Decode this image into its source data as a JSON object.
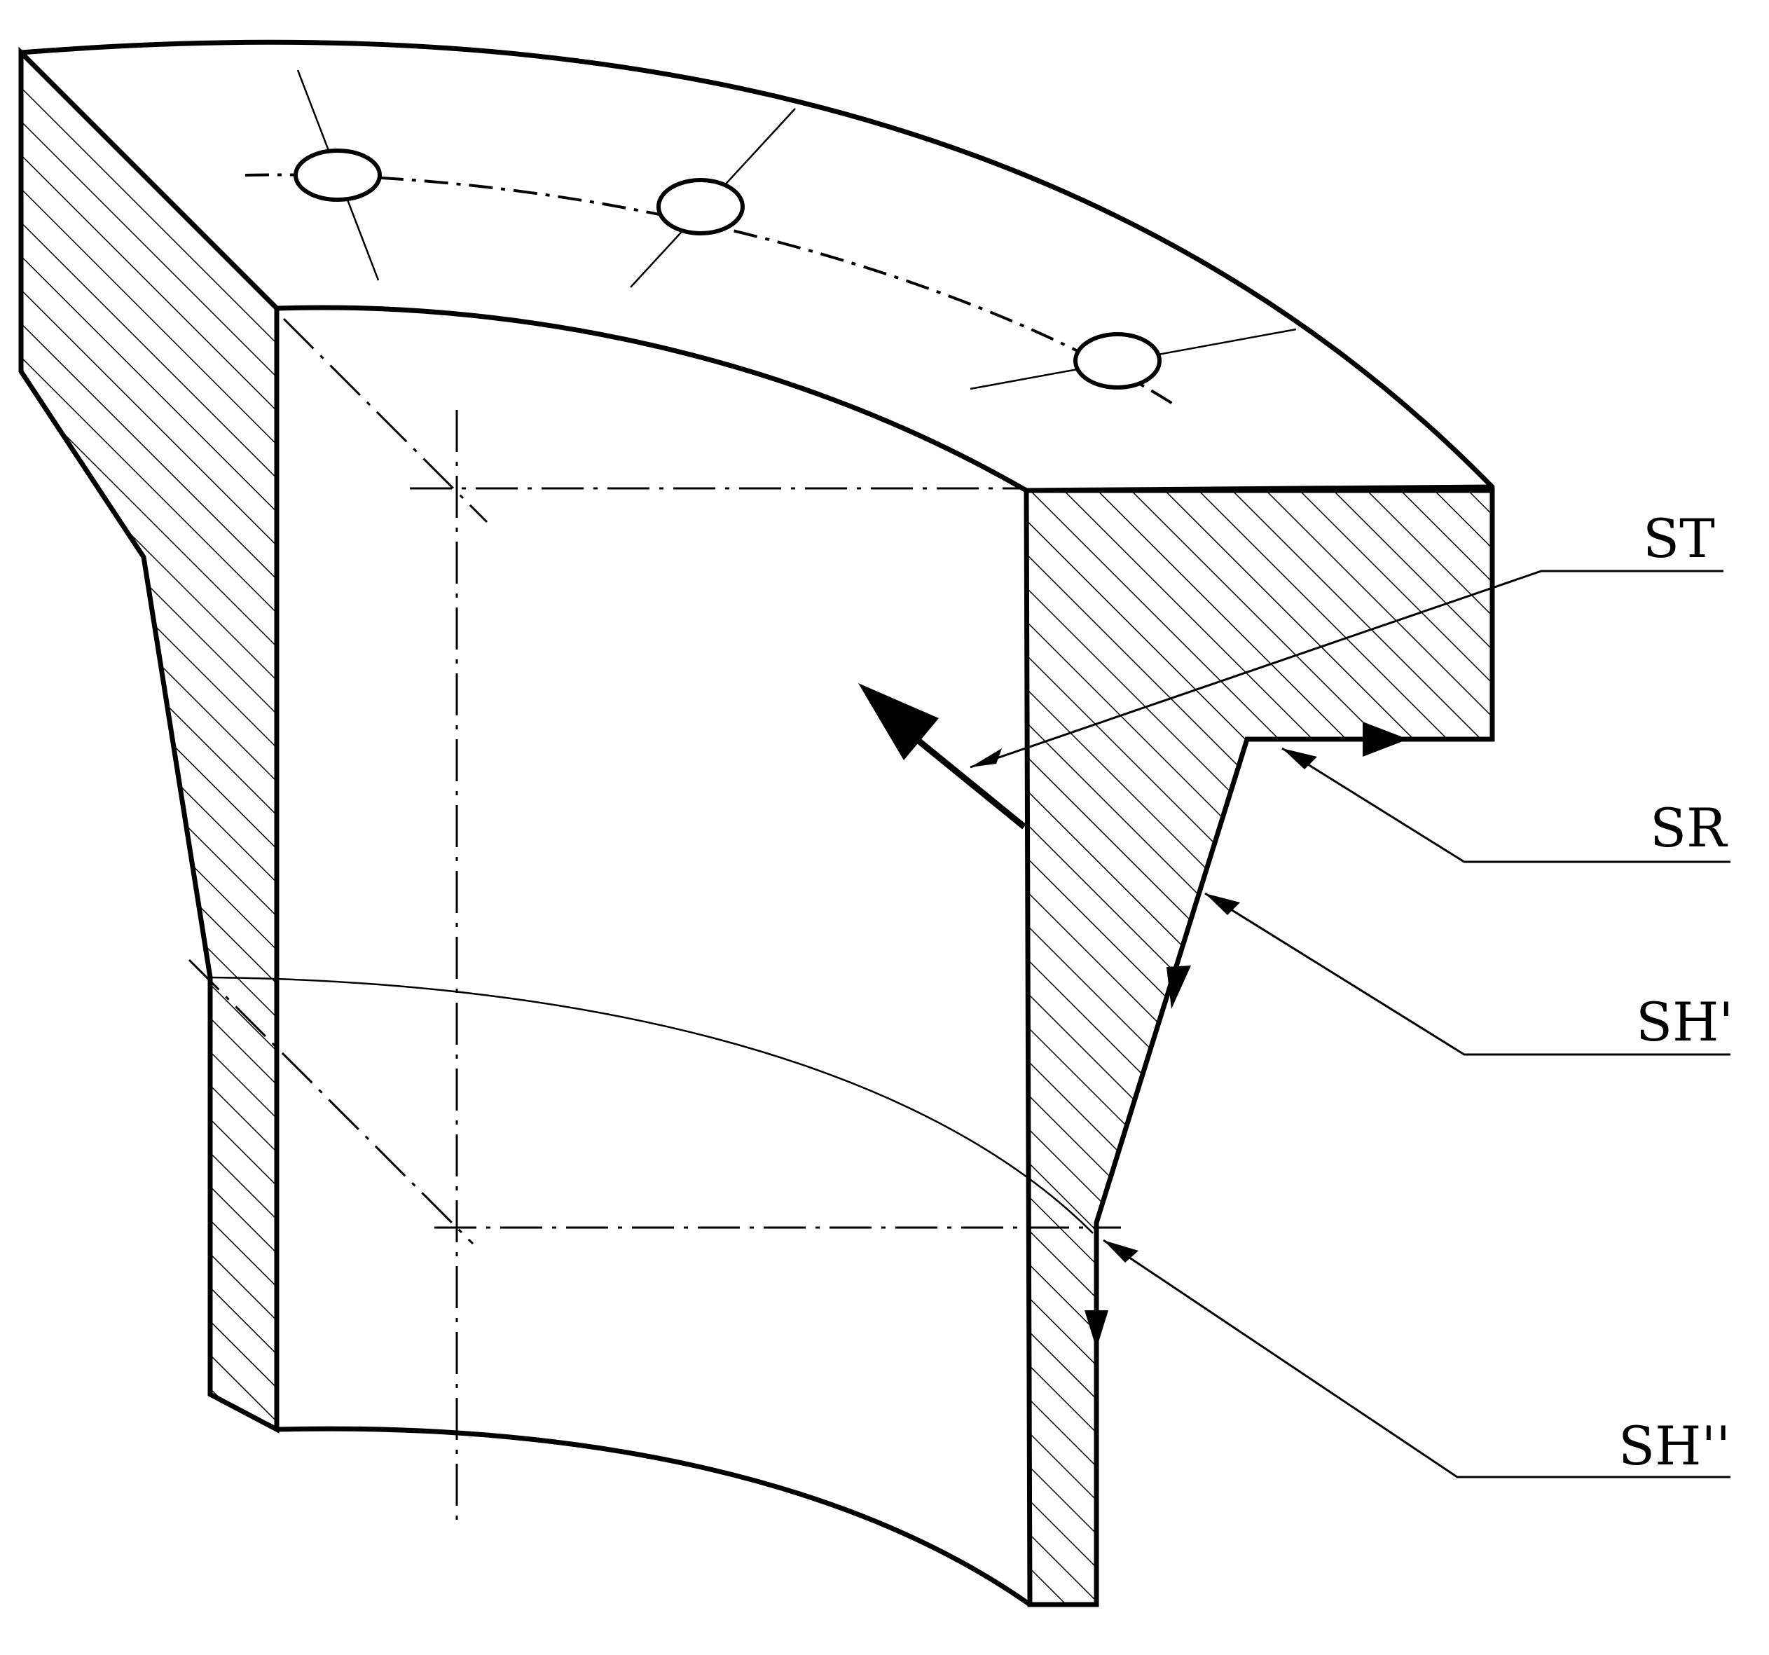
{
  "labels": {
    "st": "ST",
    "sr": "SR",
    "sh_prime": "SH'",
    "sh_double_prime": "SH''"
  },
  "colors": {
    "line": "#000000",
    "background": "#ffffff"
  }
}
